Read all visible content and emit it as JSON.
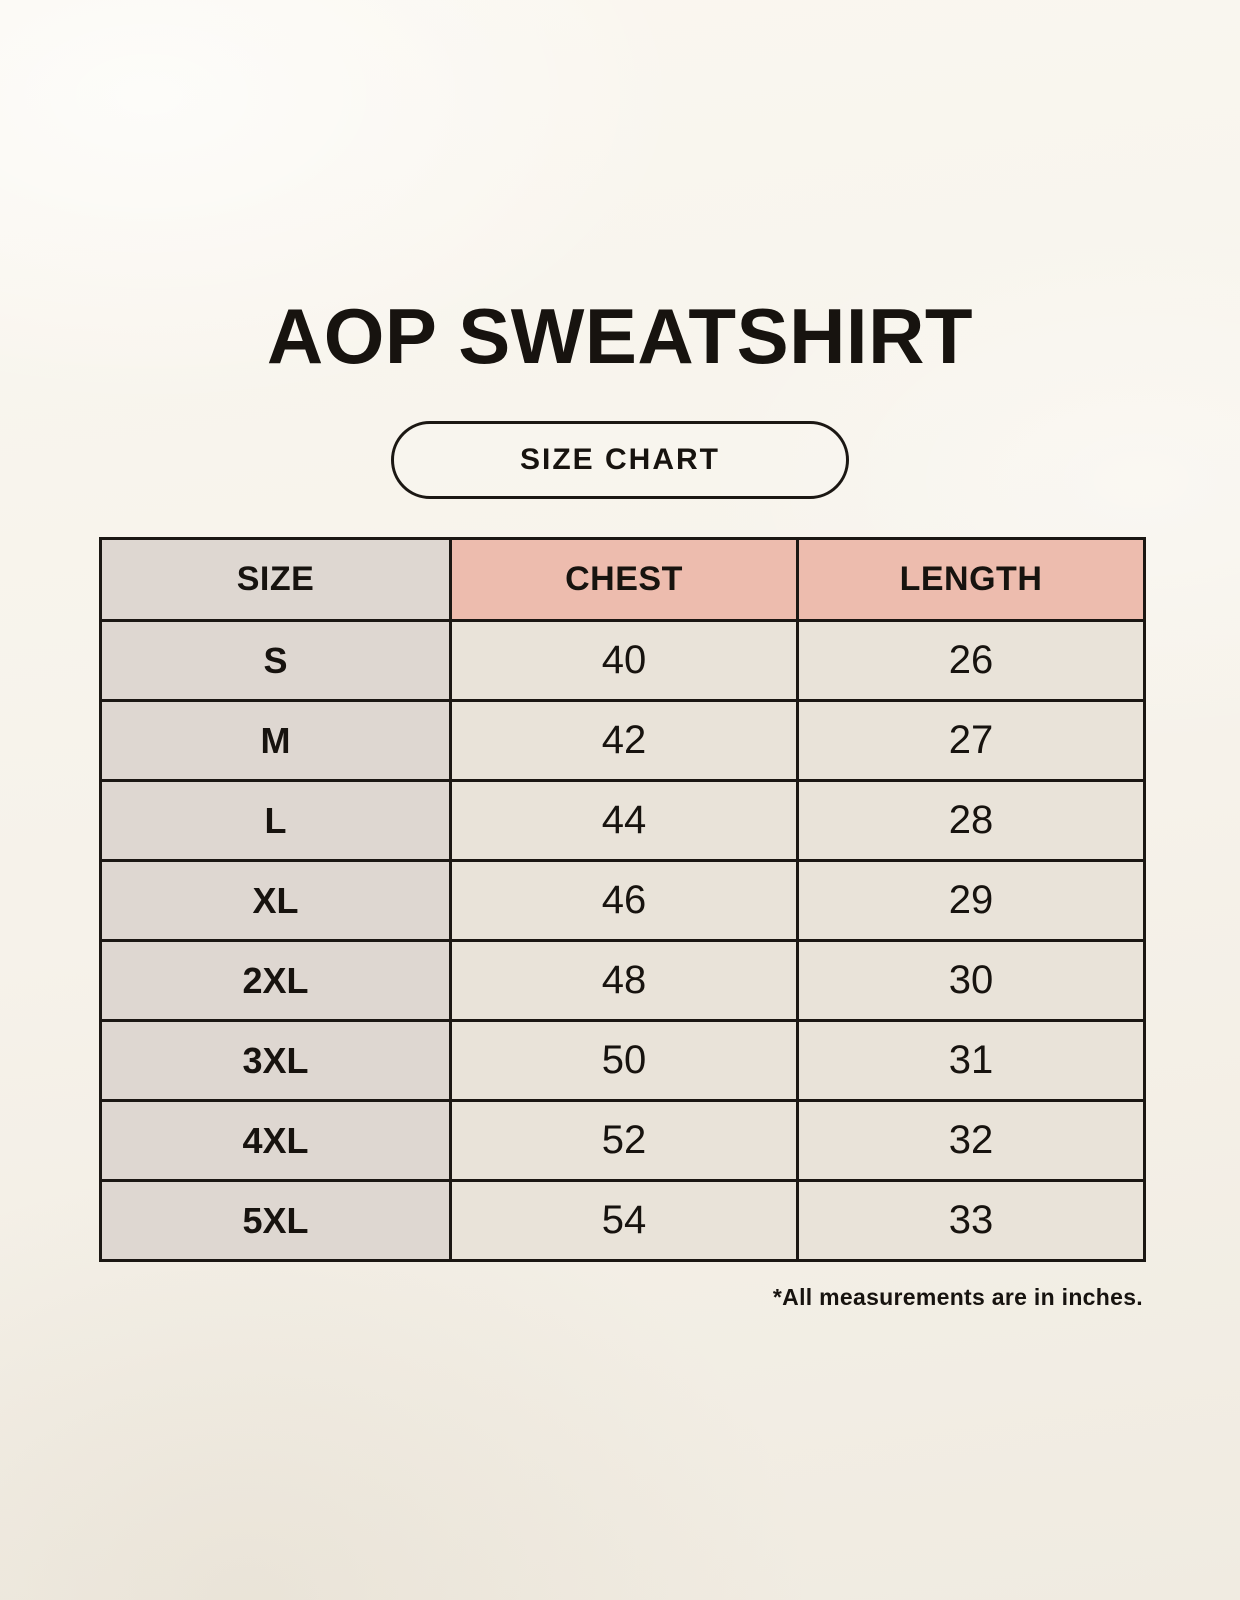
{
  "page": {
    "title": "AOP SWEATSHIRT",
    "size_chart_button_label": "SIZE CHART",
    "footnote": "*All measurements are in inches."
  },
  "chart_data": {
    "type": "table",
    "title": "AOP SWEATSHIRT",
    "subtitle": "SIZE CHART",
    "columns": [
      "SIZE",
      "CHEST",
      "LENGTH"
    ],
    "rows": [
      [
        "S",
        "40",
        "26"
      ],
      [
        "M",
        "42",
        "27"
      ],
      [
        "L",
        "44",
        "28"
      ],
      [
        "XL",
        "46",
        "29"
      ],
      [
        "2XL",
        "48",
        "30"
      ],
      [
        "3XL",
        "50",
        "31"
      ],
      [
        "4XL",
        "52",
        "32"
      ],
      [
        "5XL",
        "54",
        "33"
      ]
    ],
    "units_note": "*All measurements are in inches.",
    "layout": {
      "legend_position": "none",
      "grid": "all-borders"
    }
  },
  "colors": {
    "background": "#f6f2ea",
    "text": "#17130f",
    "border": "#1b1713",
    "header_pink": "#edbcae",
    "cell_grey": "#ded7d1",
    "cell_cream": "#e9e3d9"
  }
}
